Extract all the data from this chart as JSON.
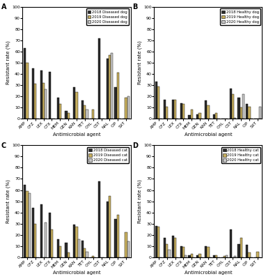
{
  "panels": [
    {
      "label": "A",
      "legend": [
        "2018 Diseased dog",
        "2019 Diseased dog",
        "2020 Diseased dog"
      ],
      "cats": [
        "AMP",
        "CFZ",
        "LEX",
        "CTX",
        "MEM",
        "GEN",
        "KAN",
        "TET",
        "CHL",
        "CST",
        "NAL",
        "CIP",
        "SXT"
      ],
      "v2018": [
        63,
        45,
        43,
        42,
        19,
        7,
        28,
        16,
        0,
        72,
        54,
        28,
        0
      ],
      "v2019": [
        50,
        31,
        32,
        0,
        13,
        5,
        24,
        12,
        8,
        0,
        57,
        41,
        19
      ],
      "v2020": [
        0,
        0,
        26,
        0,
        0,
        0,
        0,
        8,
        0,
        0,
        59,
        0,
        20
      ]
    },
    {
      "label": "B",
      "legend": [
        "2018 Healthy dog",
        "2019 Healthy dog",
        "2020 Healthy dog"
      ],
      "cats": [
        "AMP",
        "CFZ",
        "LEX",
        "CTX",
        "MEM",
        "GEN",
        "KAN",
        "TET",
        "CHL",
        "CST",
        "NAL",
        "CIP",
        "SXT"
      ],
      "v2018": [
        33,
        17,
        17,
        14,
        3,
        4,
        16,
        4,
        0,
        27,
        19,
        13,
        0
      ],
      "v2019": [
        29,
        11,
        17,
        13,
        8,
        5,
        12,
        5,
        0,
        22,
        10,
        11,
        0
      ],
      "v2020": [
        0,
        0,
        0,
        0,
        0,
        0,
        0,
        0,
        0,
        1,
        22,
        0,
        11
      ]
    },
    {
      "label": "C",
      "legend": [
        "2018 Diseased cat",
        "2019 Diseased cat",
        "2020 Diseased cat"
      ],
      "cats": [
        "AMP",
        "CFZ",
        "LEX",
        "CTX",
        "MEM",
        "GEN",
        "KAN",
        "TET",
        "CHL",
        "CST",
        "NAL",
        "CIP",
        "SXT"
      ],
      "v2018": [
        65,
        44,
        47,
        40,
        16,
        13,
        29,
        15,
        0,
        68,
        50,
        34,
        0
      ],
      "v2019": [
        59,
        30,
        0,
        25,
        10,
        4,
        27,
        8,
        1,
        0,
        55,
        38,
        22
      ],
      "v2020": [
        57,
        0,
        31,
        0,
        0,
        0,
        16,
        5,
        0,
        0,
        0,
        0,
        14
      ]
    },
    {
      "label": "D",
      "legend": [
        "2018 Healthy cat",
        "2019 Healthy cat",
        "2020 Healthy cat"
      ],
      "cats": [
        "AMP",
        "CFZ",
        "LEX",
        "CTX",
        "MEM",
        "GEN",
        "KAN",
        "TET",
        "CHL",
        "CST",
        "NAL",
        "CIP",
        "SXT"
      ],
      "v2018": [
        28,
        17,
        19,
        10,
        2,
        2,
        10,
        2,
        0,
        25,
        12,
        11,
        0
      ],
      "v2019": [
        27,
        12,
        17,
        9,
        3,
        3,
        9,
        2,
        1,
        0,
        17,
        4,
        5
      ],
      "v2020": [
        0,
        7,
        0,
        2,
        0,
        0,
        0,
        0,
        2,
        1,
        0,
        0,
        0
      ]
    }
  ],
  "color2018": "#2b2b2b",
  "color2019": "#c8b060",
  "color2020": "#c8c8c8",
  "ylabel": "Resistant rate (%)",
  "xlabel": "Antimicrobial agent"
}
